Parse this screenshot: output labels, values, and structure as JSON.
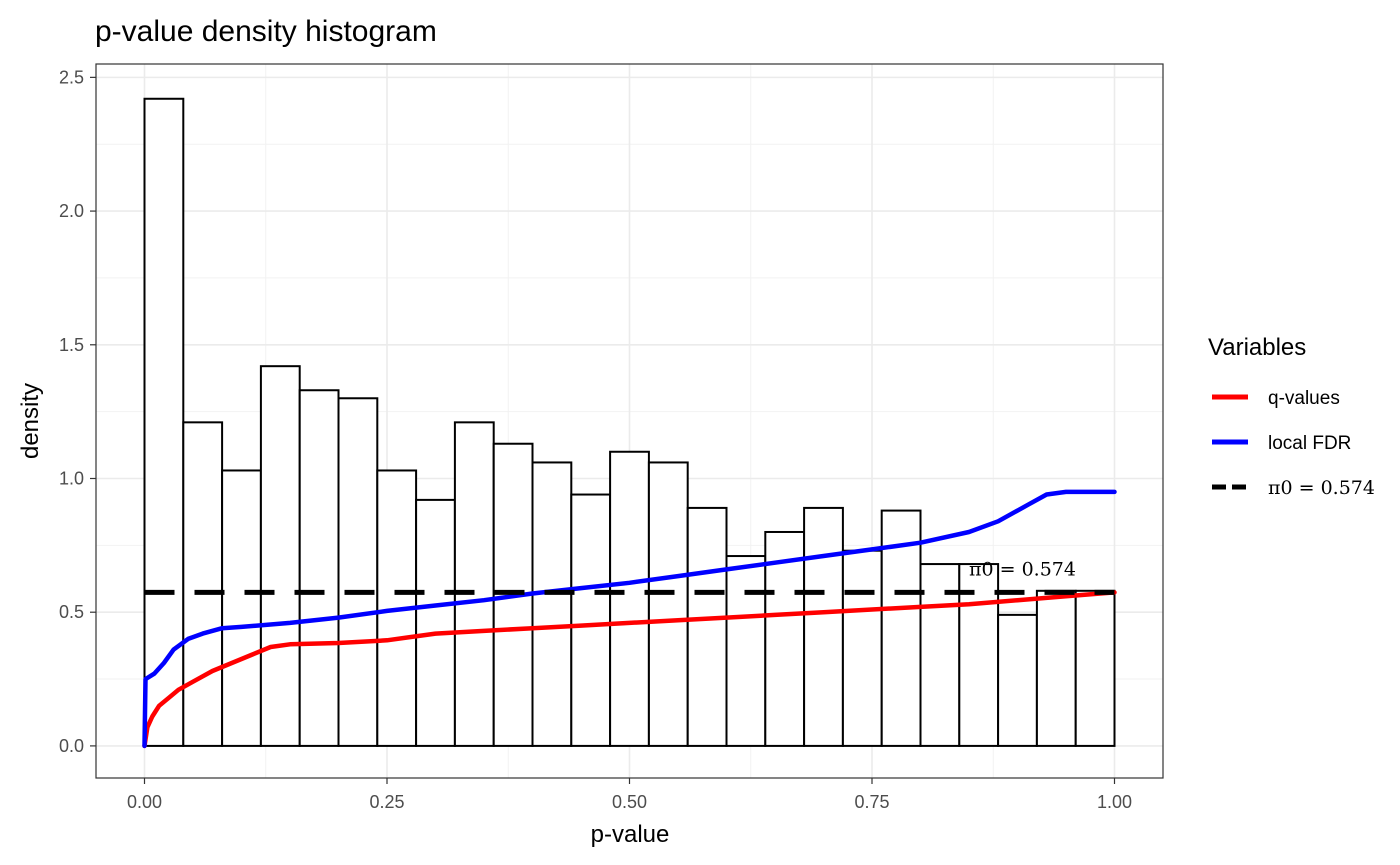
{
  "chart_data": {
    "type": "bar",
    "title": "p-value density histogram",
    "xlabel": "p-value",
    "ylabel": "density",
    "xlim": [
      -0.05,
      1.05
    ],
    "ylim": [
      -0.12,
      2.55
    ],
    "x_ticks": [
      "0.00",
      "0.25",
      "0.50",
      "0.75",
      "1.00"
    ],
    "y_ticks": [
      "0.0",
      "0.5",
      "1.0",
      "1.5",
      "2.0",
      "2.5"
    ],
    "grid": true,
    "bin_width": 0.04,
    "bins": [
      {
        "x0": 0.0,
        "x1": 0.04,
        "density": 2.42
      },
      {
        "x0": 0.04,
        "x1": 0.08,
        "density": 1.21
      },
      {
        "x0": 0.08,
        "x1": 0.12,
        "density": 1.03
      },
      {
        "x0": 0.12,
        "x1": 0.16,
        "density": 1.42
      },
      {
        "x0": 0.16,
        "x1": 0.2,
        "density": 1.33
      },
      {
        "x0": 0.2,
        "x1": 0.24,
        "density": 1.3
      },
      {
        "x0": 0.24,
        "x1": 0.28,
        "density": 1.03
      },
      {
        "x0": 0.28,
        "x1": 0.32,
        "density": 0.92
      },
      {
        "x0": 0.32,
        "x1": 0.36,
        "density": 1.21
      },
      {
        "x0": 0.36,
        "x1": 0.4,
        "density": 1.13
      },
      {
        "x0": 0.4,
        "x1": 0.44,
        "density": 1.06
      },
      {
        "x0": 0.44,
        "x1": 0.48,
        "density": 0.94
      },
      {
        "x0": 0.48,
        "x1": 0.52,
        "density": 1.1
      },
      {
        "x0": 0.52,
        "x1": 0.56,
        "density": 1.06
      },
      {
        "x0": 0.56,
        "x1": 0.6,
        "density": 0.89
      },
      {
        "x0": 0.6,
        "x1": 0.64,
        "density": 0.71
      },
      {
        "x0": 0.64,
        "x1": 0.68,
        "density": 0.8
      },
      {
        "x0": 0.68,
        "x1": 0.72,
        "density": 0.89
      },
      {
        "x0": 0.72,
        "x1": 0.76,
        "density": 0.73
      },
      {
        "x0": 0.76,
        "x1": 0.8,
        "density": 0.88
      },
      {
        "x0": 0.8,
        "x1": 0.84,
        "density": 0.68
      },
      {
        "x0": 0.84,
        "x1": 0.88,
        "density": 0.68
      },
      {
        "x0": 0.88,
        "x1": 0.92,
        "density": 0.49
      },
      {
        "x0": 0.92,
        "x1": 0.96,
        "density": 0.58
      },
      {
        "x0": 0.96,
        "x1": 1.0,
        "density": 0.58
      }
    ],
    "series": [
      {
        "name": "q-values",
        "color": "#ff0000",
        "style": "solid",
        "points": [
          [
            0.0,
            0.0
          ],
          [
            0.003,
            0.07
          ],
          [
            0.008,
            0.11
          ],
          [
            0.015,
            0.15
          ],
          [
            0.025,
            0.18
          ],
          [
            0.035,
            0.21
          ],
          [
            0.05,
            0.24
          ],
          [
            0.07,
            0.28
          ],
          [
            0.09,
            0.31
          ],
          [
            0.11,
            0.34
          ],
          [
            0.13,
            0.37
          ],
          [
            0.15,
            0.38
          ],
          [
            0.2,
            0.385
          ],
          [
            0.25,
            0.395
          ],
          [
            0.3,
            0.42
          ],
          [
            0.35,
            0.43
          ],
          [
            0.4,
            0.44
          ],
          [
            0.45,
            0.45
          ],
          [
            0.5,
            0.46
          ],
          [
            0.55,
            0.47
          ],
          [
            0.6,
            0.48
          ],
          [
            0.65,
            0.49
          ],
          [
            0.7,
            0.5
          ],
          [
            0.75,
            0.51
          ],
          [
            0.8,
            0.52
          ],
          [
            0.85,
            0.53
          ],
          [
            0.9,
            0.545
          ],
          [
            0.95,
            0.56
          ],
          [
            1.0,
            0.574
          ]
        ]
      },
      {
        "name": "local FDR",
        "color": "#0000ff",
        "style": "solid",
        "points": [
          [
            0.0,
            0.0
          ],
          [
            0.001,
            0.25
          ],
          [
            0.01,
            0.27
          ],
          [
            0.02,
            0.31
          ],
          [
            0.03,
            0.36
          ],
          [
            0.045,
            0.4
          ],
          [
            0.06,
            0.42
          ],
          [
            0.08,
            0.44
          ],
          [
            0.1,
            0.445
          ],
          [
            0.15,
            0.46
          ],
          [
            0.2,
            0.48
          ],
          [
            0.25,
            0.505
          ],
          [
            0.3,
            0.525
          ],
          [
            0.35,
            0.545
          ],
          [
            0.4,
            0.57
          ],
          [
            0.45,
            0.59
          ],
          [
            0.5,
            0.61
          ],
          [
            0.55,
            0.635
          ],
          [
            0.6,
            0.66
          ],
          [
            0.65,
            0.685
          ],
          [
            0.7,
            0.71
          ],
          [
            0.75,
            0.735
          ],
          [
            0.8,
            0.76
          ],
          [
            0.85,
            0.8
          ],
          [
            0.88,
            0.84
          ],
          [
            0.91,
            0.9
          ],
          [
            0.93,
            0.94
          ],
          [
            0.95,
            0.95
          ],
          [
            1.0,
            0.95
          ]
        ]
      },
      {
        "name": "π0 = 0.574",
        "color": "#000000",
        "style": "dashed",
        "y": 0.574,
        "x_range": [
          0.0,
          1.0
        ]
      }
    ],
    "annotation": {
      "text": "π0 = 0.574",
      "x": 0.85,
      "y": 0.66
    },
    "legend": {
      "title": "Variables",
      "position": "right",
      "entries": [
        "q-values",
        "local FDR",
        "π0 = 0.574"
      ]
    }
  }
}
